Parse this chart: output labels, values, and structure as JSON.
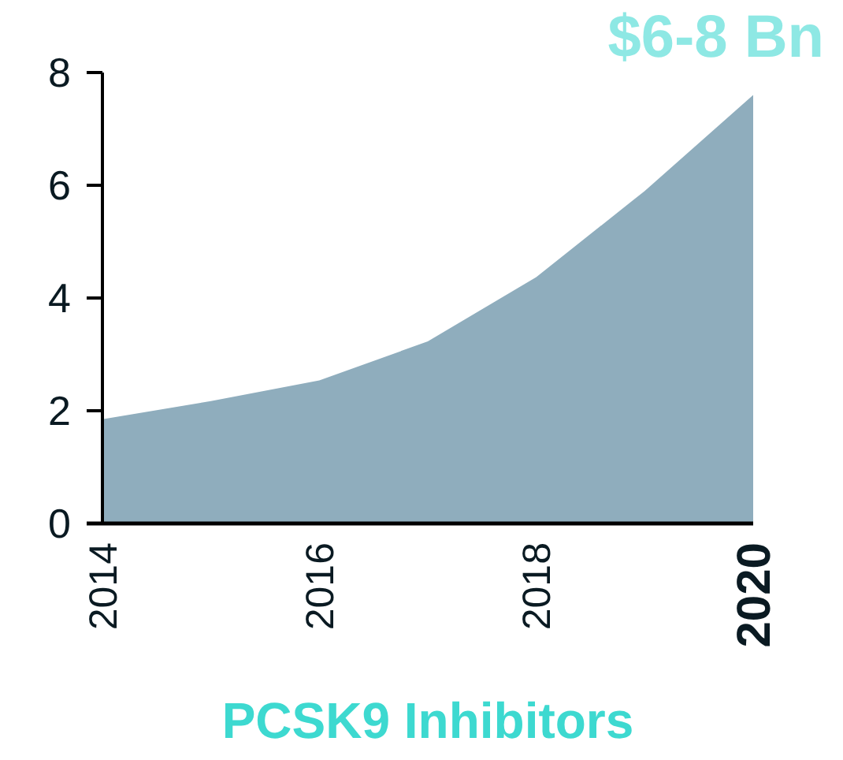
{
  "chart_data": {
    "type": "area",
    "title": "$6-8 Bn",
    "annotations": [
      "PCSK9 Inhibitors"
    ],
    "x": [
      2014,
      2015,
      2016,
      2017,
      2018,
      2019,
      2020
    ],
    "series": [
      {
        "color": "#8fadbd",
        "values": [
          1.85,
          2.17,
          2.54,
          3.23,
          4.37,
          5.9,
          7.6
        ]
      }
    ],
    "xlim": [
      2014,
      2020
    ],
    "xticks": [
      2014,
      2016,
      2018,
      2020
    ],
    "ylim": [
      0,
      8
    ],
    "yticks": [
      0,
      2,
      4,
      6,
      8
    ]
  }
}
